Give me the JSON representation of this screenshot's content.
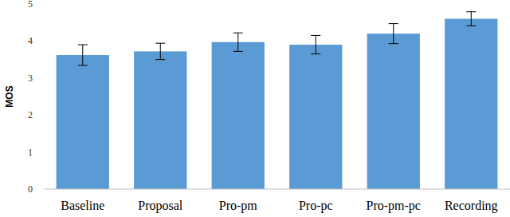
{
  "chart_data": {
    "type": "bar",
    "y_label": "MOS",
    "categories": [
      "Baseline",
      "Proposal",
      "Pro-pm",
      "Pro-pc",
      "Pro-pm-pc",
      "Recording"
    ],
    "values": [
      3.62,
      3.72,
      3.97,
      3.9,
      4.2,
      4.6
    ],
    "errors": [
      0.28,
      0.22,
      0.25,
      0.25,
      0.27,
      0.19
    ],
    "color": "#5b9bd5",
    "ylim": [
      0,
      5
    ],
    "yticks": [
      0,
      1,
      2,
      3,
      4,
      5
    ],
    "grid": false
  }
}
